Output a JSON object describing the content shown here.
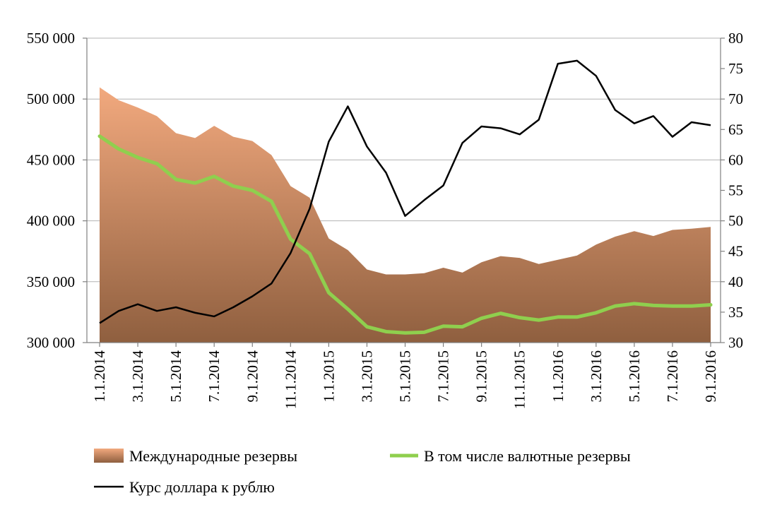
{
  "chart_data": {
    "type": "area+line",
    "title": "",
    "x": [
      "1.1.2014",
      "2.1.2014",
      "3.1.2014",
      "4.1.2014",
      "5.1.2014",
      "6.1.2014",
      "7.1.2014",
      "8.1.2014",
      "9.1.2014",
      "10.1.2014",
      "11.1.2014",
      "12.1.2014",
      "1.1.2015",
      "2.1.2015",
      "3.1.2015",
      "4.1.2015",
      "5.1.2015",
      "6.1.2015",
      "7.1.2015",
      "8.1.2015",
      "9.1.2015",
      "10.1.2015",
      "11.1.2015",
      "12.1.2015",
      "1.1.2016",
      "2.1.2016",
      "3.1.2016",
      "4.1.2016",
      "5.1.2016",
      "6.1.2016",
      "7.1.2016",
      "8.1.2016",
      "9.1.2016"
    ],
    "x_tick_labels": [
      "1.1.2014",
      "3.1.2014",
      "5.1.2014",
      "7.1.2014",
      "9.1.2014",
      "11.1.2014",
      "1.1.2015",
      "3.1.2015",
      "5.1.2015",
      "7.1.2015",
      "9.1.2015",
      "11.1.2015",
      "1.1.2016",
      "3.1.2016",
      "5.1.2016",
      "7.1.2016",
      "9.1.2016"
    ],
    "y_left": {
      "min": 300000,
      "max": 550000,
      "step": 50000,
      "tick_labels": [
        "300 000",
        "350 000",
        "400 000",
        "450 000",
        "500 000",
        "550 000"
      ]
    },
    "y_right": {
      "min": 30,
      "max": 80,
      "step": 5,
      "tick_labels": [
        "30",
        "35",
        "40",
        "45",
        "50",
        "55",
        "60",
        "65",
        "70",
        "75",
        "80"
      ]
    },
    "grid": true,
    "legend_position": "bottom",
    "series": [
      {
        "name": "Международные резервы",
        "kind": "area",
        "axis": "left",
        "color_top": "#f2a97e",
        "color_bottom": "#8f5f3f",
        "values": [
          509600,
          499000,
          493000,
          486000,
          472000,
          468000,
          478000,
          469000,
          465500,
          454000,
          428500,
          419000,
          385500,
          376000,
          360000,
          356000,
          356000,
          357000,
          361500,
          357500,
          366000,
          371000,
          369500,
          364500,
          368000,
          371500,
          380500,
          387000,
          391500,
          387500,
          392500,
          393500,
          395000
        ]
      },
      {
        "name": "В том числе валютные резервы",
        "kind": "line",
        "axis": "left",
        "color": "#8fcf4e",
        "values": [
          469500,
          459000,
          452000,
          447000,
          434000,
          431000,
          436500,
          428500,
          425000,
          416000,
          385000,
          373000,
          341000,
          327500,
          313000,
          309000,
          308000,
          308500,
          313500,
          313000,
          320000,
          324000,
          320500,
          318500,
          321000,
          321000,
          324500,
          330000,
          332000,
          330500,
          330000,
          330000,
          331000
        ]
      },
      {
        "name": "Курс доллара к рублю",
        "kind": "line",
        "axis": "right",
        "color": "#000000",
        "values": [
          33.2,
          35.2,
          36.3,
          35.2,
          35.8,
          34.9,
          34.3,
          35.8,
          37.6,
          39.7,
          44.7,
          52.0,
          63.0,
          68.8,
          62.2,
          57.9,
          50.8,
          53.4,
          55.8,
          62.8,
          65.5,
          65.2,
          64.2,
          66.6,
          75.8,
          76.3,
          73.8,
          68.2,
          66.0,
          67.2,
          63.8,
          66.2,
          65.7
        ]
      }
    ]
  }
}
